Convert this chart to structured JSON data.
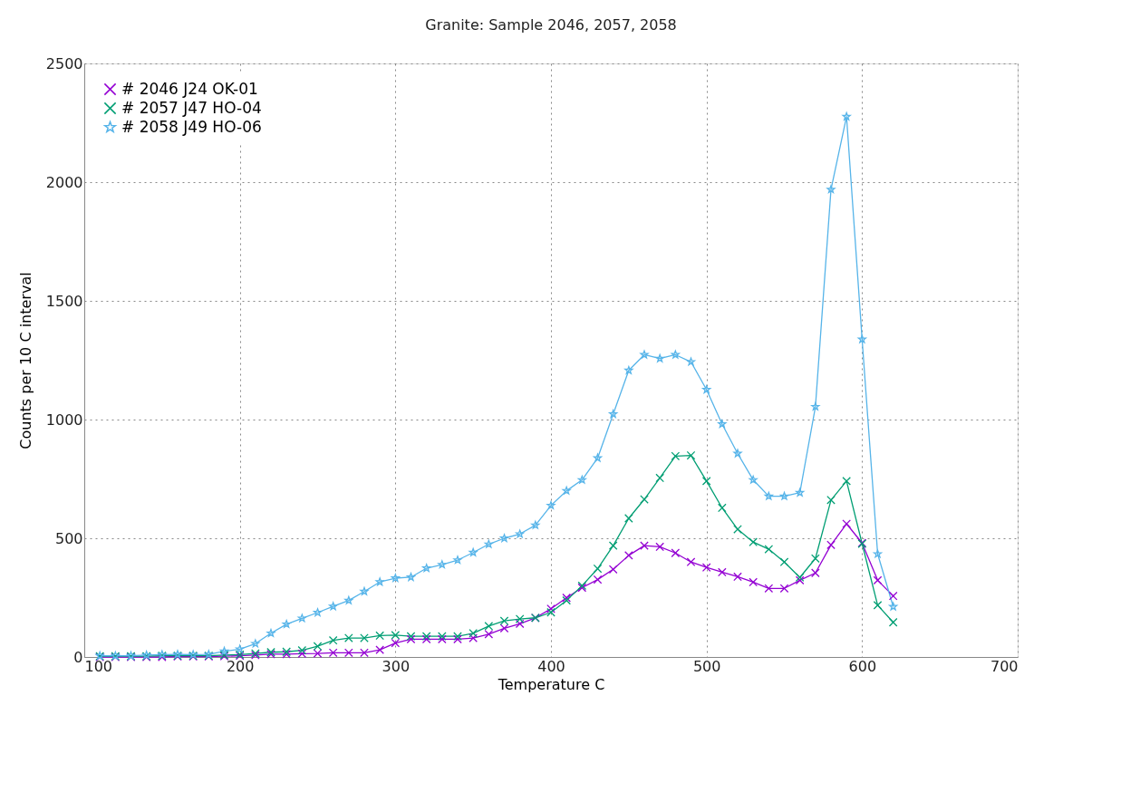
{
  "chart_data": {
    "type": "line",
    "title": "Granite: Sample  2046,   2057,   2058",
    "xlabel": "Temperature C",
    "ylabel": "Counts per 10 C interval",
    "x": [
      110,
      120,
      130,
      140,
      150,
      160,
      170,
      180,
      190,
      200,
      210,
      220,
      230,
      240,
      250,
      260,
      270,
      280,
      290,
      300,
      310,
      320,
      330,
      340,
      350,
      360,
      370,
      380,
      390,
      400,
      410,
      420,
      430,
      440,
      450,
      460,
      470,
      480,
      490,
      500,
      510,
      520,
      530,
      540,
      550,
      560,
      570,
      580,
      590,
      600,
      610,
      620
    ],
    "series": [
      {
        "name": "# 2046  J24 OK-01",
        "color": "#9400d3",
        "marker": "cross",
        "values": [
          0,
          0,
          0,
          0,
          0,
          2,
          2,
          2,
          3,
          5,
          8,
          12,
          12,
          14,
          15,
          18,
          18,
          18,
          30,
          59,
          75,
          75,
          75,
          75,
          80,
          96,
          121,
          140,
          165,
          203,
          249,
          292,
          326,
          369,
          428,
          469,
          464,
          438,
          400,
          377,
          357,
          338,
          315,
          289,
          289,
          323,
          354,
          472,
          561,
          480,
          323,
          257
        ]
      },
      {
        "name": "# 2057  J47 HO-04",
        "color": "#009e73",
        "marker": "cross",
        "values": [
          3,
          3,
          3,
          3,
          5,
          5,
          5,
          5,
          8,
          10,
          15,
          20,
          22,
          28,
          45,
          70,
          80,
          80,
          90,
          92,
          87,
          87,
          87,
          87,
          100,
          130,
          152,
          160,
          165,
          188,
          238,
          300,
          372,
          469,
          584,
          664,
          754,
          846,
          849,
          741,
          628,
          538,
          484,
          454,
          400,
          335,
          415,
          661,
          741,
          477,
          218,
          146
        ]
      },
      {
        "name": "# 2058  J49 HO-06",
        "color": "#56b4e9",
        "marker": "star",
        "values": [
          5,
          5,
          5,
          8,
          10,
          11,
          10,
          11,
          24,
          33,
          56,
          100,
          138,
          163,
          187,
          213,
          238,
          276,
          316,
          332,
          336,
          374,
          389,
          408,
          440,
          475,
          500,
          518,
          555,
          638,
          700,
          746,
          838,
          1023,
          1207,
          1273,
          1257,
          1273,
          1243,
          1126,
          981,
          857,
          746,
          677,
          677,
          692,
          1054,
          1969,
          2276,
          1338,
          434,
          212
        ]
      }
    ],
    "xlim": [
      100,
      700
    ],
    "xticks": [
      100,
      200,
      300,
      400,
      500,
      600,
      700
    ],
    "ylim": [
      0,
      2500
    ],
    "yticks": [
      0,
      500,
      1000,
      1500,
      2000,
      2500
    ],
    "grid": true,
    "legend": "top left",
    "line_style": "solid"
  }
}
